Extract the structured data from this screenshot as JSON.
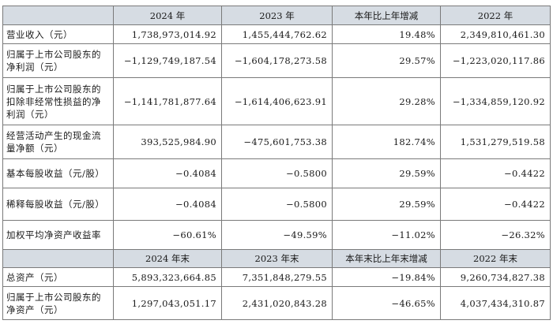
{
  "table": {
    "header1": [
      "",
      "2024 年",
      "2023 年",
      "本年比上年增减",
      "2022 年"
    ],
    "rows1": [
      {
        "label": "营业收入（元）",
        "v2024": "1,738,973,014.92",
        "v2023": "1,455,444,762.62",
        "change": "19.48%",
        "v2022": "2,349,810,461.30"
      },
      {
        "label": "归属于上市公司股东的净利润（元）",
        "v2024": "−1,129,749,187.54",
        "v2023": "−1,604,178,273.58",
        "change": "29.57%",
        "v2022": "−1,223,020,117.86"
      },
      {
        "label": "归属于上市公司股东的扣除非经常性损益的净利润（元）",
        "v2024": "−1,141,781,877.64",
        "v2023": "−1,614,406,623.91",
        "change": "29.28%",
        "v2022": "−1,334,859,120.92"
      },
      {
        "label": "经营活动产生的现金流量净额（元）",
        "v2024": "393,525,984.90",
        "v2023": "−475,601,753.38",
        "change": "182.74%",
        "v2022": "1,531,279,519.58"
      },
      {
        "label": "基本每股收益（元/股）",
        "v2024": "−0.4084",
        "v2023": "−0.5800",
        "change": "29.59%",
        "v2022": "−0.4422"
      },
      {
        "label": "稀释每股收益（元/股）",
        "v2024": "−0.4084",
        "v2023": "−0.5800",
        "change": "29.59%",
        "v2022": "−0.4422"
      },
      {
        "label": "加权平均净资产收益率",
        "v2024": "−60.61%",
        "v2023": "−49.59%",
        "change": "−11.02%",
        "v2022": "−26.32%"
      }
    ],
    "header2": [
      "",
      "2024 年末",
      "2023 年末",
      "本年末比上年末增减",
      "2022 年末"
    ],
    "rows2": [
      {
        "label": "总资产（元）",
        "v2024": "5,893,323,664.85",
        "v2023": "7,351,848,279.55",
        "change": "−19.84%",
        "v2022": "9,260,734,827.38"
      },
      {
        "label": "归属于上市公司股东的净资产（元）",
        "v2024": "1,297,043,051.17",
        "v2023": "2,431,020,843.28",
        "change": "−46.65%",
        "v2022": "4,037,434,310.87"
      }
    ]
  }
}
